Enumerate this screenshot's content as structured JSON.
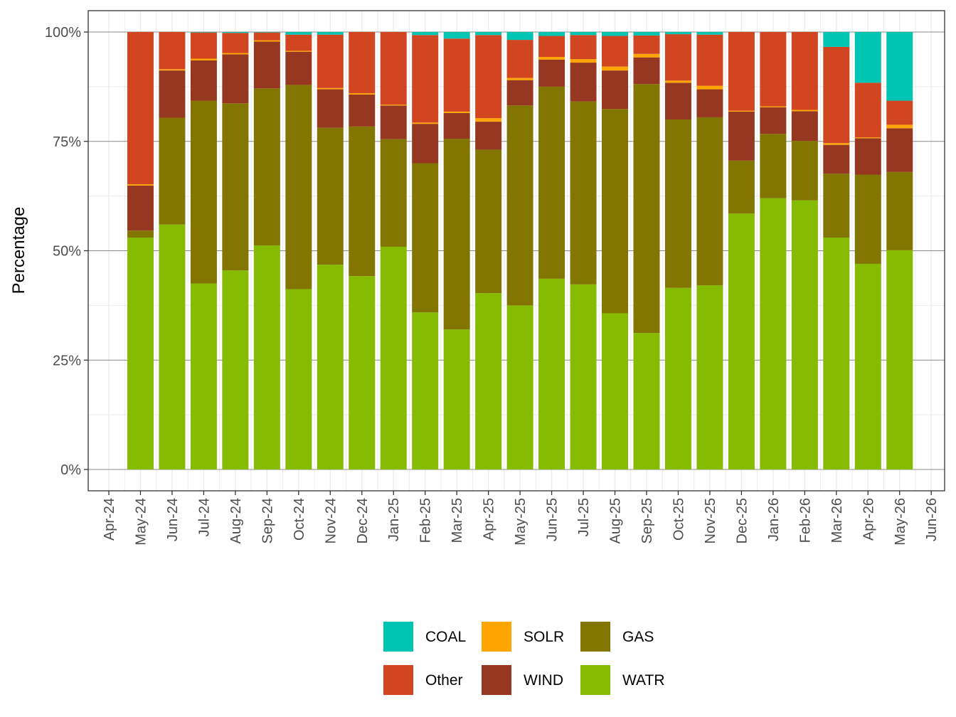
{
  "chart_data": {
    "type": "bar",
    "stacked": true,
    "title": "",
    "xlabel": "",
    "ylabel": "Percentage",
    "ylim": [
      0,
      1
    ],
    "y_ticks": [
      "0%",
      "25%",
      "50%",
      "75%",
      "100%"
    ],
    "x_ticks": [
      "Apr-24",
      "May-24",
      "Jun-24",
      "Jul-24",
      "Aug-24",
      "Sep-24",
      "Oct-24",
      "Nov-24",
      "Dec-24",
      "Jan-25",
      "Feb-25",
      "Mar-25",
      "Apr-25",
      "May-25",
      "Jun-25",
      "Jul-25",
      "Aug-25",
      "Sep-25",
      "Oct-25",
      "Nov-25",
      "Dec-25",
      "Jan-26",
      "Feb-26",
      "Mar-26",
      "Apr-26",
      "May-26",
      "Jun-26"
    ],
    "categories": [
      "May-24",
      "Jun-24",
      "Jul-24",
      "Aug-24",
      "Sep-24",
      "Oct-24",
      "Nov-24",
      "Dec-24",
      "Jan-25",
      "Feb-25",
      "Mar-25",
      "Apr-25",
      "May-25",
      "Jun-25",
      "Jul-25",
      "Aug-25",
      "Sep-25",
      "Oct-25",
      "Nov-25",
      "Dec-25",
      "Jan-26",
      "Feb-26",
      "Mar-26",
      "Apr-26",
      "May-26"
    ],
    "grid": true,
    "legend_position": "bottom",
    "series": [
      {
        "name": "WATR",
        "color": "#85BB00",
        "values": [
          0.53,
          0.56,
          0.425,
          0.455,
          0.512,
          0.412,
          0.468,
          0.442,
          0.509,
          0.359,
          0.32,
          0.403,
          0.375,
          0.436,
          0.423,
          0.357,
          0.312,
          0.415,
          0.421,
          0.585,
          0.62,
          0.615,
          0.53,
          0.47,
          0.501
        ]
      },
      {
        "name": "GAS",
        "color": "#827600",
        "values": [
          0.016,
          0.244,
          0.418,
          0.382,
          0.359,
          0.467,
          0.313,
          0.342,
          0.246,
          0.341,
          0.436,
          0.328,
          0.457,
          0.439,
          0.418,
          0.467,
          0.569,
          0.385,
          0.384,
          0.121,
          0.147,
          0.136,
          0.146,
          0.204,
          0.179
        ]
      },
      {
        "name": "WIND",
        "color": "#963821",
        "values": [
          0.103,
          0.108,
          0.092,
          0.112,
          0.107,
          0.076,
          0.088,
          0.073,
          0.077,
          0.09,
          0.059,
          0.064,
          0.058,
          0.062,
          0.089,
          0.088,
          0.061,
          0.084,
          0.064,
          0.112,
          0.061,
          0.068,
          0.066,
          0.083,
          0.1
        ]
      },
      {
        "name": "SOLR",
        "color": "#FFA500",
        "values": [
          0.003,
          0.003,
          0.004,
          0.003,
          0.003,
          0.002,
          0.003,
          0.003,
          0.002,
          0.003,
          0.003,
          0.008,
          0.005,
          0.006,
          0.008,
          0.009,
          0.008,
          0.005,
          0.008,
          0.002,
          0.002,
          0.003,
          0.004,
          0.002,
          0.008
        ]
      },
      {
        "name": "Other",
        "color": "#D14520",
        "values": [
          0.348,
          0.085,
          0.06,
          0.046,
          0.018,
          0.037,
          0.122,
          0.14,
          0.166,
          0.2,
          0.167,
          0.19,
          0.087,
          0.048,
          0.055,
          0.07,
          0.042,
          0.106,
          0.117,
          0.18,
          0.17,
          0.178,
          0.22,
          0.125,
          0.055
        ]
      },
      {
        "name": "COAL",
        "color": "#00C5B2",
        "values": [
          0,
          0,
          0.001,
          0.002,
          0.001,
          0.006,
          0.006,
          0,
          0,
          0.007,
          0.015,
          0.007,
          0.018,
          0.009,
          0.007,
          0.009,
          0.008,
          0.005,
          0.006,
          0,
          0,
          0,
          0.034,
          0.116,
          0.157
        ]
      }
    ],
    "legend_order": [
      "COAL",
      "SOLR",
      "GAS",
      "Other",
      "WIND",
      "WATR"
    ]
  }
}
